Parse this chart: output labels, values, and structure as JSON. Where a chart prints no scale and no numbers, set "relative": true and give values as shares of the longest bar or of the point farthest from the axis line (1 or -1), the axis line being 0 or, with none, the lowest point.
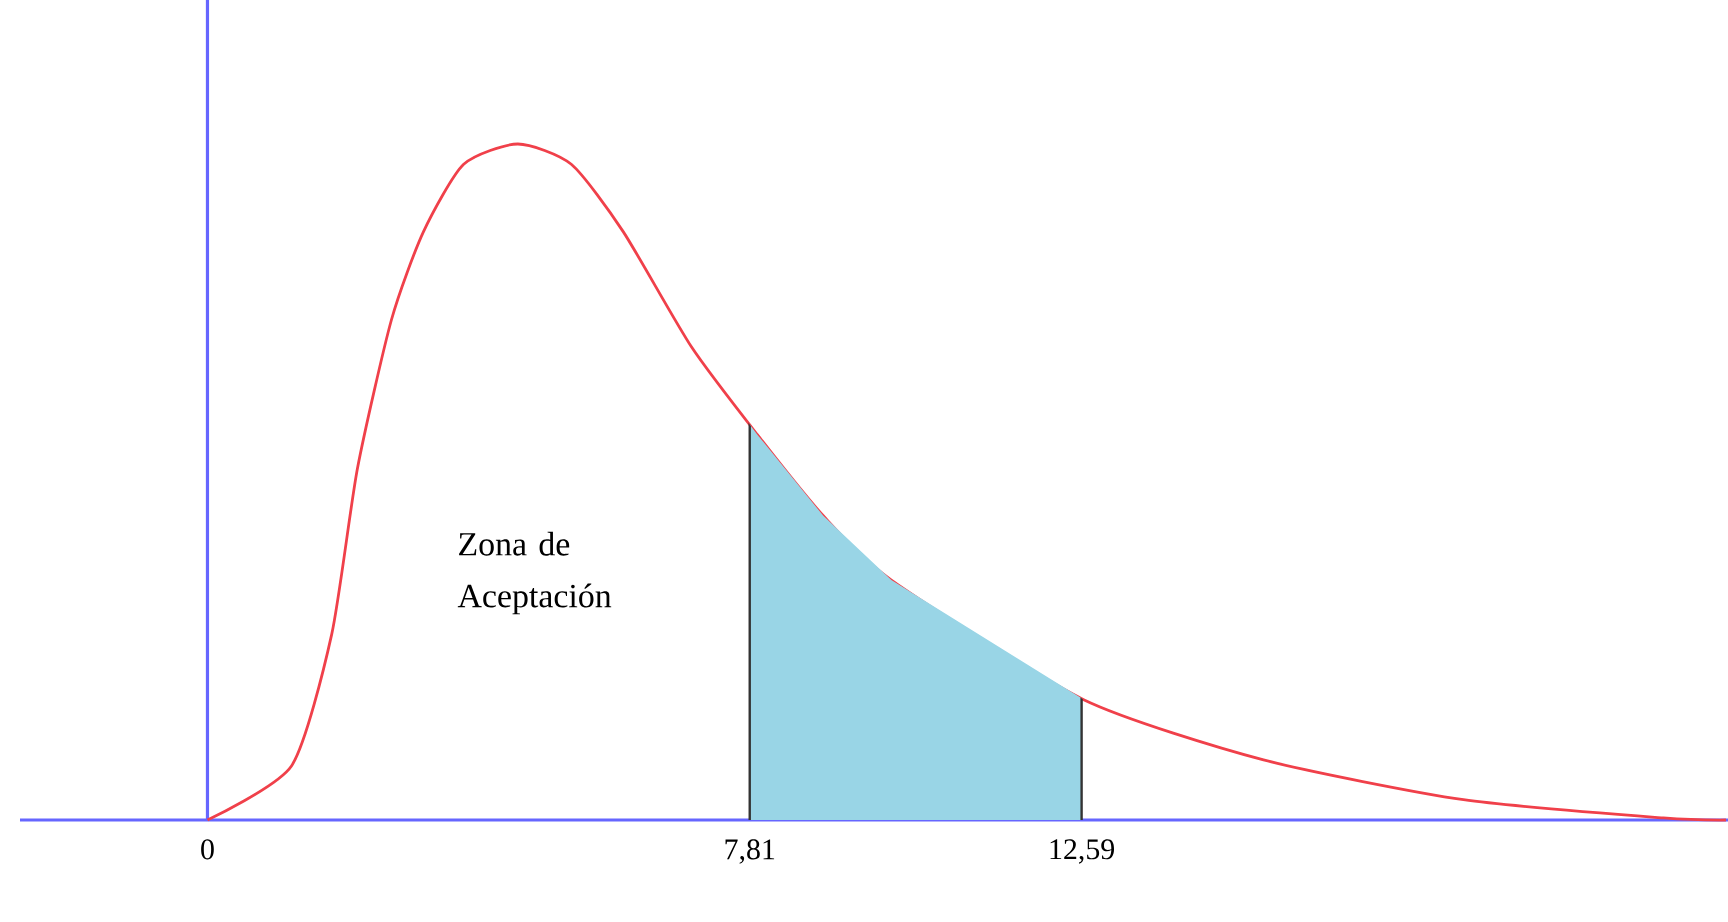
{
  "chart_data": {
    "type": "line",
    "relative": true,
    "x": [
      0,
      1.21,
      1.79,
      2.16,
      2.65,
      3.11,
      3.69,
      4.47,
      5.24,
      5.99,
      6.97,
      7.92,
      8.87,
      9.85,
      12.62,
      15.21,
      18.09,
      20.97,
      21.87
    ],
    "series": [
      {
        "color": "#f0404a",
        "values": [
          0,
          0.08,
          0.275,
          0.52,
          0.74,
          0.87,
          0.97,
          1.0,
          0.97,
          0.87,
          0.7,
          0.57,
          0.45,
          0.355,
          0.178,
          0.089,
          0.03,
          0.003,
          0
        ]
      }
    ],
    "xlim": [
      -2.7,
      21.9
    ],
    "xticks": [
      0,
      {
        "value": 7.81,
        "label": "7,81"
      },
      {
        "value": 12.59,
        "label": "12,59"
      }
    ],
    "bands": [
      {
        "axis": "x",
        "from": 7.81,
        "to": 12.59,
        "color": "#99d5e6"
      }
    ],
    "annotations": [
      "Zona de Aceptación"
    ],
    "ref_lines": [
      {
        "axis": "x",
        "value": 0,
        "color": "#6666ff"
      }
    ],
    "marker": "none",
    "line_style": "solid"
  }
}
